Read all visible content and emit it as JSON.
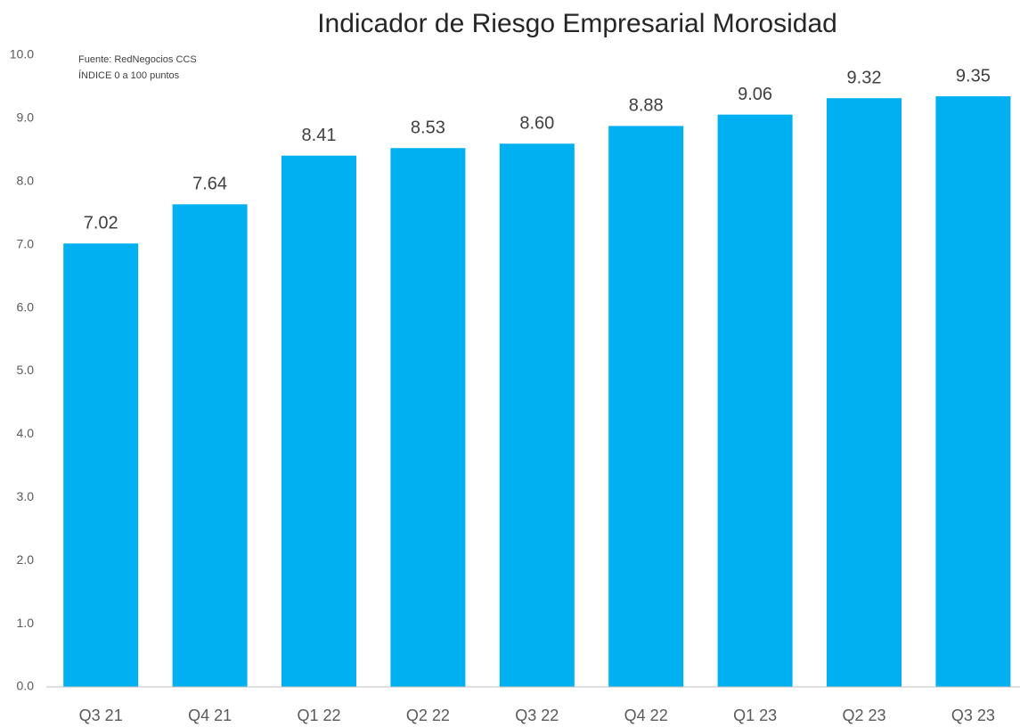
{
  "chart_data": {
    "type": "bar",
    "title": "Indicador de Riesgo Empresarial Morosidad",
    "annotations": [
      "Fuente: RedNegocios CCS",
      "ÍNDICE 0 a 100  puntos"
    ],
    "categories": [
      "Q3 21",
      "Q4 21",
      "Q1 22",
      "Q2 22",
      "Q3 22",
      "Q4 22",
      "Q1 23",
      "Q2 23",
      "Q3 23"
    ],
    "values": [
      7.02,
      7.64,
      8.41,
      8.53,
      8.6,
      8.88,
      9.06,
      9.32,
      9.35
    ],
    "value_labels": [
      "7.02",
      "7.64",
      "8.41",
      "8.53",
      "8.60",
      "8.88",
      "9.06",
      "9.32",
      "9.35"
    ],
    "color": "#00b0f0",
    "ylim": [
      0,
      10
    ],
    "yticks": [
      {
        "value": 0,
        "label": "0.0"
      },
      {
        "value": 1,
        "label": "1.0"
      },
      {
        "value": 2,
        "label": "2.0"
      },
      {
        "value": 3,
        "label": "3.0"
      },
      {
        "value": 4,
        "label": "4.0"
      },
      {
        "value": 5,
        "label": "5.0"
      },
      {
        "value": 6,
        "label": "6.0"
      },
      {
        "value": 7,
        "label": "7.0"
      },
      {
        "value": 8,
        "label": "8.0"
      },
      {
        "value": 9,
        "label": "9.0"
      },
      {
        "value": 10,
        "label": "10.0"
      }
    ],
    "grid": false
  }
}
